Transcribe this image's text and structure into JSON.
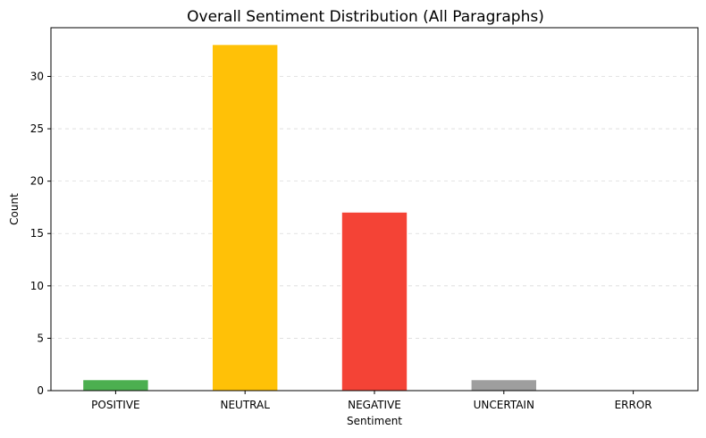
{
  "chart_data": {
    "type": "bar",
    "title": "Overall Sentiment Distribution (All Paragraphs)",
    "xlabel": "Sentiment",
    "ylabel": "Count",
    "categories": [
      "POSITIVE",
      "NEUTRAL",
      "NEGATIVE",
      "UNCERTAIN",
      "ERROR"
    ],
    "values": [
      1,
      33,
      17,
      1,
      0
    ],
    "colors": [
      "#4caf50",
      "#ffc107",
      "#f44336",
      "#9e9e9e",
      "#9e9e9e"
    ],
    "ylim": [
      0,
      34.65
    ],
    "yticks": [
      0,
      5,
      10,
      15,
      20,
      25,
      30
    ],
    "grid": true
  }
}
